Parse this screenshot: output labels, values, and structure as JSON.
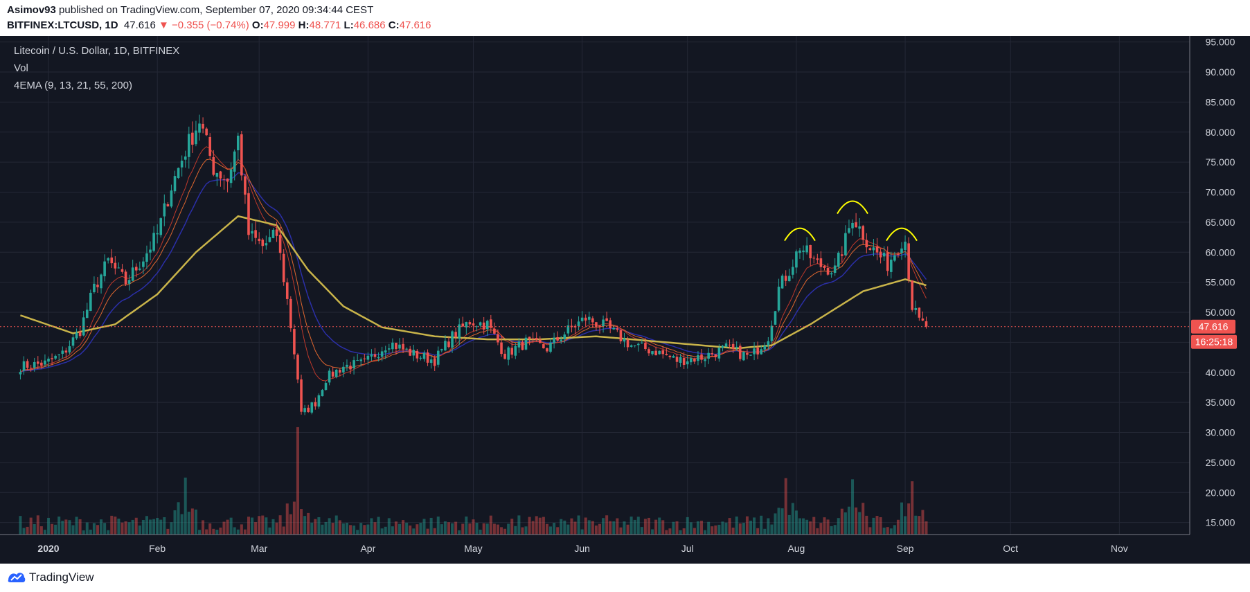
{
  "header": {
    "author": "Asimov93",
    "published_text": "published on TradingView.com, September 07, 2020 09:34:44 CEST",
    "symbol": "BITFINEX:LTCUSD, 1D",
    "last": "47.616",
    "change": "−0.355 (−0.74%)",
    "o_label": "O:",
    "o_value": "47.999",
    "h_label": "H:",
    "h_value": "48.771",
    "l_label": "L:",
    "l_value": "46.686",
    "c_label": "C:",
    "c_value": "47.616"
  },
  "legend": {
    "title": "Litecoin / U.S. Dollar, 1D, BITFINEX",
    "vol": "Vol",
    "ema": "4EMA (9, 13, 21, 55, 200)"
  },
  "price_tag": "47.616",
  "countdown_tag": "16:25:18",
  "footer": {
    "brand": "TradingView"
  },
  "colors": {
    "up": "#26a69a",
    "down": "#ef5350",
    "background": "#131722",
    "ema9": "#c0392b",
    "ema13": "#e0672f",
    "ema21": "#2b2fa8",
    "ema55": "#c9b44a",
    "annotation": "#ffff00"
  },
  "chart_data": {
    "type": "candlestick",
    "ylim": [
      13,
      96
    ],
    "y_ticks": [
      "95.000",
      "90.000",
      "85.000",
      "80.000",
      "75.000",
      "70.000",
      "65.000",
      "60.000",
      "55.000",
      "50.000",
      "45.000",
      "40.000",
      "35.000",
      "30.000",
      "25.000",
      "20.000",
      "15.000"
    ],
    "x_ticks": [
      {
        "label": "2020",
        "date": "2020-01-01"
      },
      {
        "label": "Feb",
        "date": "2020-02-01"
      },
      {
        "label": "Mar",
        "date": "2020-03-01"
      },
      {
        "label": "Apr",
        "date": "2020-04-01"
      },
      {
        "label": "May",
        "date": "2020-05-01"
      },
      {
        "label": "Jun",
        "date": "2020-06-01"
      },
      {
        "label": "Jul",
        "date": "2020-07-01"
      },
      {
        "label": "Aug",
        "date": "2020-08-01"
      },
      {
        "label": "Sep",
        "date": "2020-09-01"
      },
      {
        "label": "Oct",
        "date": "2020-10-01"
      },
      {
        "label": "Nov",
        "date": "2020-11-01"
      }
    ],
    "close_anchors": [
      [
        "2019-12-24",
        41
      ],
      [
        "2019-12-31",
        41.5
      ],
      [
        "2020-01-05",
        43
      ],
      [
        "2020-01-10",
        47
      ],
      [
        "2020-01-14",
        54
      ],
      [
        "2020-01-18",
        58.5
      ],
      [
        "2020-01-23",
        55
      ],
      [
        "2020-01-28",
        59
      ],
      [
        "2020-02-01",
        63
      ],
      [
        "2020-02-05",
        71
      ],
      [
        "2020-02-09",
        77
      ],
      [
        "2020-02-13",
        82
      ],
      [
        "2020-02-17",
        74
      ],
      [
        "2020-02-21",
        72
      ],
      [
        "2020-02-24",
        79
      ],
      [
        "2020-02-27",
        63
      ],
      [
        "2020-03-02",
        61
      ],
      [
        "2020-03-06",
        63
      ],
      [
        "2020-03-09",
        52
      ],
      [
        "2020-03-12",
        39
      ],
      [
        "2020-03-13",
        33
      ],
      [
        "2020-03-17",
        35
      ],
      [
        "2020-03-20",
        39
      ],
      [
        "2020-03-25",
        41
      ],
      [
        "2020-03-31",
        41.5
      ],
      [
        "2020-04-07",
        45
      ],
      [
        "2020-04-14",
        43
      ],
      [
        "2020-04-20",
        42
      ],
      [
        "2020-04-25",
        46
      ],
      [
        "2020-04-30",
        48.5
      ],
      [
        "2020-05-05",
        48
      ],
      [
        "2020-05-10",
        43
      ],
      [
        "2020-05-16",
        45
      ],
      [
        "2020-05-22",
        44
      ],
      [
        "2020-05-28",
        47
      ],
      [
        "2020-06-02",
        49
      ],
      [
        "2020-06-08",
        47.5
      ],
      [
        "2020-06-15",
        44.5
      ],
      [
        "2020-06-22",
        43.5
      ],
      [
        "2020-06-28",
        42
      ],
      [
        "2020-07-05",
        42.5
      ],
      [
        "2020-07-12",
        44
      ],
      [
        "2020-07-19",
        42.5
      ],
      [
        "2020-07-24",
        46
      ],
      [
        "2020-07-27",
        54
      ],
      [
        "2020-07-30",
        57
      ],
      [
        "2020-08-02",
        61
      ],
      [
        "2020-08-07",
        58
      ],
      [
        "2020-08-12",
        57
      ],
      [
        "2020-08-15",
        62
      ],
      [
        "2020-08-17",
        66
      ],
      [
        "2020-08-22",
        61
      ],
      [
        "2020-08-27",
        58
      ],
      [
        "2020-08-31",
        62
      ],
      [
        "2020-09-01",
        62
      ],
      [
        "2020-09-03",
        51
      ],
      [
        "2020-09-05",
        48.5
      ],
      [
        "2020-09-07",
        47.616
      ]
    ],
    "ema55_anchors": [
      [
        "2019-12-24",
        49.5
      ],
      [
        "2020-01-08",
        46.5
      ],
      [
        "2020-01-20",
        48
      ],
      [
        "2020-02-01",
        53
      ],
      [
        "2020-02-12",
        60
      ],
      [
        "2020-02-24",
        66
      ],
      [
        "2020-03-06",
        64.5
      ],
      [
        "2020-03-15",
        57
      ],
      [
        "2020-03-25",
        51
      ],
      [
        "2020-04-05",
        47.5
      ],
      [
        "2020-04-20",
        46
      ],
      [
        "2020-05-05",
        45.5
      ],
      [
        "2020-05-20",
        45.5
      ],
      [
        "2020-06-05",
        46
      ],
      [
        "2020-06-25",
        45
      ],
      [
        "2020-07-15",
        44
      ],
      [
        "2020-07-25",
        44.5
      ],
      [
        "2020-08-05",
        48
      ],
      [
        "2020-08-20",
        53.5
      ],
      [
        "2020-09-01",
        55.5
      ],
      [
        "2020-09-07",
        54.5
      ]
    ],
    "volume_bars": "one bar per candle, height proportional to traded volume; spikes around 2020-03-12, 2020-08-17, 2020-09-03"
  }
}
